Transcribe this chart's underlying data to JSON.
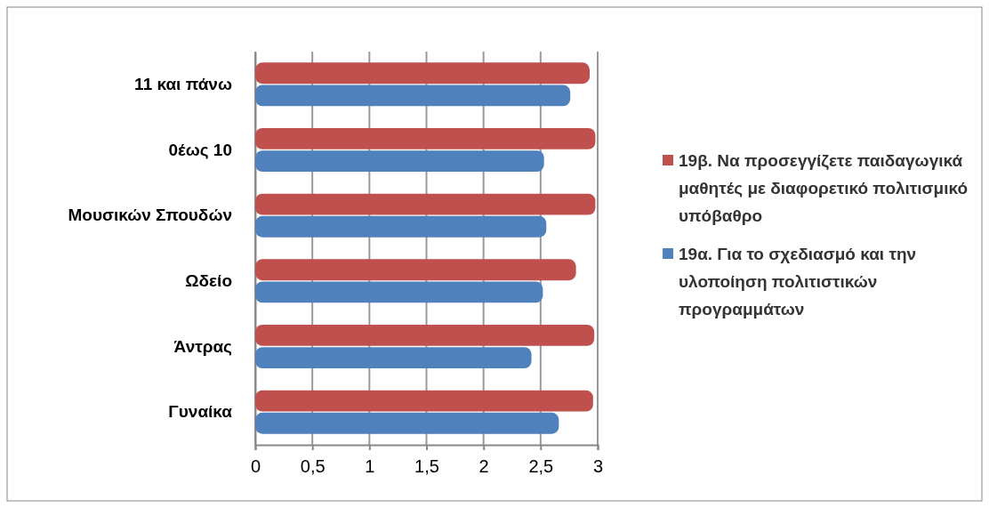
{
  "chart_data": {
    "type": "bar",
    "orientation": "horizontal",
    "categories": [
      "11 και πάνω",
      "0έως 10",
      "Μουσικών Σπουδών",
      "Ωδείο",
      "Άντρας",
      "Γυναίκα"
    ],
    "series": [
      {
        "name": "19β. Να προσεγγίζετε παιδαγωγικά μαθητές με διαφορετικό πολιτισμικό υπόβαθρο",
        "color": "#c0504d",
        "values": [
          2.93,
          2.98,
          2.98,
          2.81,
          2.97,
          2.96
        ]
      },
      {
        "name": "19α. Για το σχεδιασμό και την υλοποίηση πολιτιστικών προγραμμάτων",
        "color": "#4f81bd",
        "values": [
          2.76,
          2.53,
          2.55,
          2.52,
          2.42,
          2.66
        ]
      }
    ],
    "xlim": [
      0,
      3
    ],
    "xticks": [
      0,
      {
        "value": 0.5,
        "label": "0,5"
      },
      1,
      {
        "value": 1.5,
        "label": "1,5"
      },
      2,
      {
        "value": 2.5,
        "label": "2,5"
      },
      3
    ],
    "grid": "x",
    "legend": "right"
  }
}
